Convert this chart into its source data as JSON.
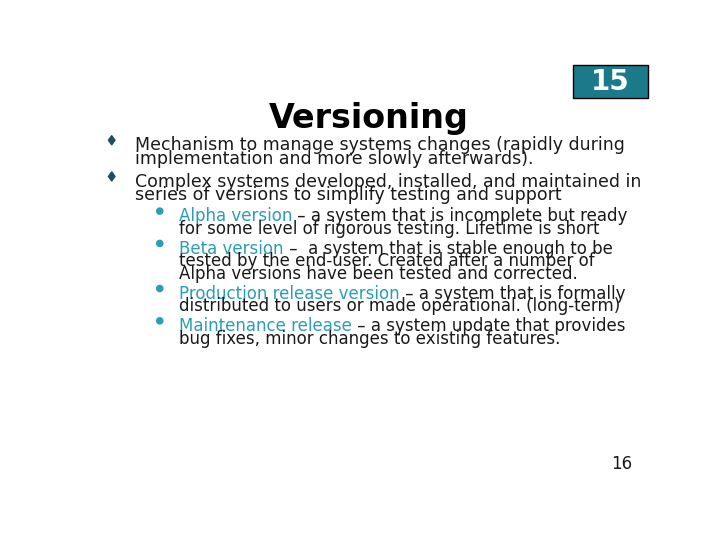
{
  "bg_color": "#ffffff",
  "slide_number_bg": "#1a7a8a",
  "slide_number_text": "15",
  "slide_number_fg": "#ffffff",
  "page_number_text": "16",
  "title": "Versioning",
  "title_color": "#000000",
  "title_fontsize": 24,
  "teal_color": "#2a9db8",
  "black_color": "#1a1a1a",
  "diamond_color": "#1a5060",
  "bullet_color": "#2a9db8",
  "body_fontsize": 12.5,
  "sub_fontsize": 12.0,
  "items": [
    {
      "type": "diamond",
      "level": 0,
      "lines": [
        [
          {
            "text": "Mechanism to manage systems changes (rapidly during",
            "color": "#1a1a1a"
          }
        ],
        [
          {
            "text": "implementation and more slowly afterwards).",
            "color": "#1a1a1a"
          }
        ]
      ]
    },
    {
      "type": "diamond",
      "level": 0,
      "lines": [
        [
          {
            "text": "Complex systems developed, installed, and maintained in",
            "color": "#1a1a1a"
          }
        ],
        [
          {
            "text": "series of versions to simplify testing and support",
            "color": "#1a1a1a"
          }
        ]
      ]
    },
    {
      "type": "circle",
      "level": 1,
      "lines": [
        [
          {
            "text": "Alpha version",
            "color": "#2a9db8"
          },
          {
            "text": " – a system that is incomplete but ready",
            "color": "#1a1a1a"
          }
        ],
        [
          {
            "text": "for some level of rigorous testing. Lifetime is short",
            "color": "#1a1a1a"
          }
        ]
      ]
    },
    {
      "type": "circle",
      "level": 1,
      "lines": [
        [
          {
            "text": "Beta version",
            "color": "#2a9db8"
          },
          {
            "text": " –  a system that is stable enough to be",
            "color": "#1a1a1a"
          }
        ],
        [
          {
            "text": "tested by the end-user. Created after a number of",
            "color": "#1a1a1a"
          }
        ],
        [
          {
            "text": "Alpha versions have been tested and corrected.",
            "color": "#1a1a1a"
          }
        ]
      ]
    },
    {
      "type": "circle",
      "level": 1,
      "lines": [
        [
          {
            "text": "Production release version",
            "color": "#2a9db8"
          },
          {
            "text": " – a system that is formally",
            "color": "#1a1a1a"
          }
        ],
        [
          {
            "text": "distributed to users or made operational. (long-term)",
            "color": "#1a1a1a"
          }
        ]
      ]
    },
    {
      "type": "circle",
      "level": 1,
      "lines": [
        [
          {
            "text": "Maintenance release",
            "color": "#2a9db8"
          },
          {
            "text": " – a system update that provides",
            "color": "#1a1a1a"
          }
        ],
        [
          {
            "text": "bug fixes, minor changes to existing features.",
            "color": "#1a1a1a"
          }
        ]
      ]
    }
  ]
}
